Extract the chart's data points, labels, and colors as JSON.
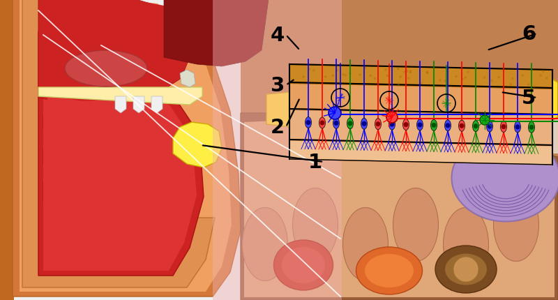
{
  "figsize": [
    8.0,
    4.31
  ],
  "dpi": 100,
  "bg_color": "#ffffff",
  "colors": {
    "head_outer_border": "#C06820",
    "head_skin": "#E8943A",
    "skull_bone": "#D4783A",
    "nasal_dark": "#AA1111",
    "nasal_red": "#CC2222",
    "nasal_mid": "#DD3333",
    "nasal_light": "#EE5555",
    "yellow_olf": "#FFEE44",
    "yellow_olf_edge": "#CCAA00",
    "palate_cream": "#FFEEAA",
    "tooth_white": "#F5F5F5",
    "tongue_red": "#CC4444",
    "throat_dark": "#881111",
    "pink_overlay": "#F0C0C0",
    "brain_brown": "#A06030",
    "brain_light": "#C88050",
    "brain_peach": "#E8A070",
    "brain_gyri": "#D4906A",
    "red_struct": "#CC3322",
    "orange_struct": "#E07030",
    "brown_struct": "#8B5A2B",
    "cerebellum": "#B090CC",
    "cerebellum_edge": "#9070AA",
    "cerebellum_fold": "#7050AA",
    "bulb_yellow": "#FFE030",
    "bulb_edge": "#CCA010",
    "bone_layer": "#CC8822",
    "bone_edge": "#AA6600",
    "epi_layer1": "#E8A060",
    "epi_layer2": "#EAB080",
    "epi_layer3": "#F0C090",
    "nerve_blue": "#0000FF",
    "nerve_red": "#FF0000",
    "nerve_green": "#008800",
    "neuron_blue_body": "#4444FF",
    "neuron_red_body": "#FF4444",
    "neuron_green_body": "#22AA22",
    "white_line": "#ffffff",
    "black": "#000000"
  }
}
